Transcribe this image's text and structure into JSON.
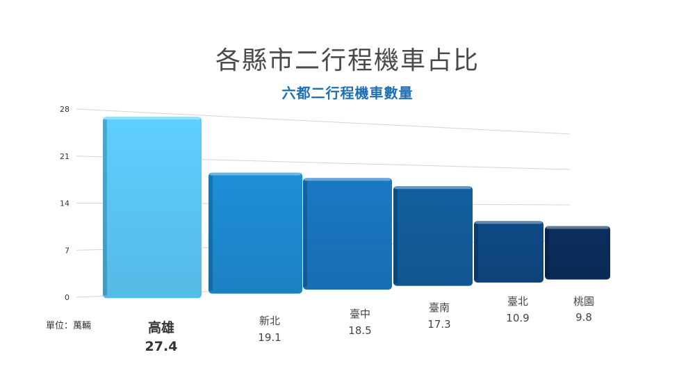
{
  "chart_data": {
    "type": "bar",
    "title": "各縣市二行程機車占比",
    "subtitle": "六都二行程機車數量",
    "unit_label": "單位：萬輛",
    "categories": [
      "高雄",
      "新北",
      "臺中",
      "臺南",
      "臺北",
      "桃園"
    ],
    "values": [
      27.4,
      19.1,
      18.5,
      17.3,
      10.9,
      9.8
    ],
    "value_labels": [
      "27.4",
      "19.1",
      "18.5",
      "17.3",
      "10.9",
      "9.8"
    ],
    "yticks": [
      0,
      7,
      14,
      21,
      28
    ],
    "ylim": [
      0,
      28
    ],
    "grid": true,
    "legend": "none",
    "colors": [
      "#5ecfff",
      "#1e8fd8",
      "#1a79c4",
      "#135f9f",
      "#0f4a86",
      "#0b2e5e"
    ]
  }
}
